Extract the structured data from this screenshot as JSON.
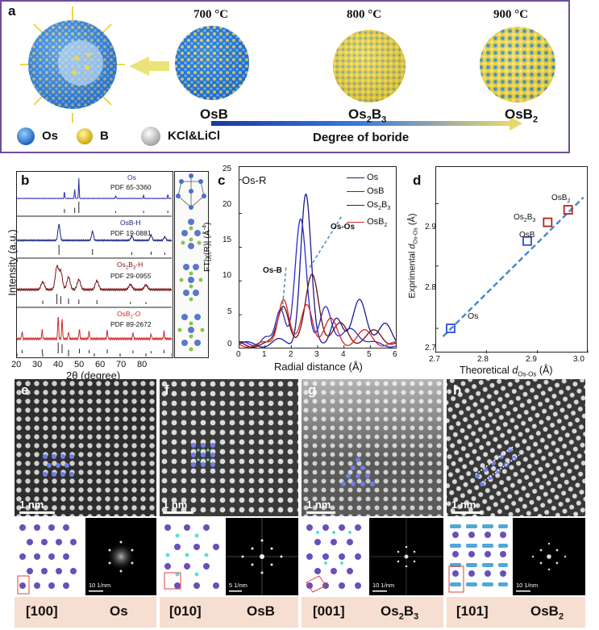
{
  "panel_a": {
    "letter": "a",
    "temps": [
      "700 °C",
      "800 °C",
      "900 °C"
    ],
    "phases": [
      "OsB",
      "Os",
      "2",
      "B",
      "3",
      "OsB",
      "2"
    ],
    "legend": [
      "Os",
      "B",
      "KCl&LiCl"
    ],
    "gradient_label": "Degree of boride"
  },
  "panel_b": {
    "letter": "b",
    "traces": [
      {
        "name": "Os",
        "pdf": "PDF 65-3360",
        "color": "#2c2cb0"
      },
      {
        "name": "OsB-H",
        "pdf": "PDF 19-0881",
        "color": "#1a237e"
      },
      {
        "name_parts": [
          "Os",
          "2",
          "B",
          "3",
          "-H"
        ],
        "pdf": "PDF 29-0955",
        "color": "#7a1414"
      },
      {
        "name_parts": [
          "OsB",
          "2",
          "-O"
        ],
        "pdf": "PDF 89-2672",
        "color": "#d22b2b"
      }
    ],
    "ylabel": "Intensity (a.u.)",
    "xlabel": "2θ (degree)",
    "xticks": [
      "20",
      "30",
      "40",
      "50",
      "60",
      "70",
      "80"
    ]
  },
  "panel_c": {
    "letter": "c",
    "title": "Os-R",
    "ylabel_parts": [
      "FT|χ(R)| (Å",
      "-4",
      ")"
    ],
    "xlabel": "Radial distance (Å)",
    "xticks": [
      "0",
      "1",
      "2",
      "3",
      "4",
      "5",
      "6"
    ],
    "yticks": [
      "0",
      "5",
      "10",
      "15",
      "20",
      "25"
    ],
    "annotations": [
      "Os-B",
      "Os-Os"
    ],
    "legend": [
      {
        "label": "Os",
        "color": "#1c1c8c"
      },
      {
        "label": "OsB",
        "color": "#2a2ad0"
      },
      {
        "label_parts": [
          "Os",
          "2",
          "B",
          "3"
        ],
        "color": "#6e0e0e"
      },
      {
        "label_parts": [
          "OsB",
          "2"
        ],
        "color": "#d42a2a"
      }
    ]
  },
  "panel_d": {
    "letter": "d",
    "xlabel_parts": [
      "Theoretical ",
      "d",
      "Os-Os",
      " (Å)"
    ],
    "ylabel_parts": [
      "Exprimental ",
      "d",
      "Os-Os",
      " (Å)"
    ],
    "xticks": [
      "2.7",
      "2.8",
      "2.9",
      "3.0"
    ],
    "yticks": [
      "2.7",
      "2.8",
      "2.9"
    ],
    "points": [
      {
        "label": "Os",
        "x": 2.73,
        "y": 2.7,
        "color": "#2a4fd0"
      },
      {
        "label": "OsB",
        "x": 2.88,
        "y": 2.84,
        "color": "#2a4fd0"
      },
      {
        "label_parts": [
          "Os",
          "2",
          "B",
          "3"
        ],
        "x": 2.92,
        "y": 2.87,
        "color": "#b22222"
      },
      {
        "label_parts": [
          "OsB",
          "2"
        ],
        "x": 2.96,
        "y": 2.89,
        "color": "#b22222"
      }
    ]
  },
  "microscopy": [
    {
      "letter": "e",
      "scale": "1 nm",
      "fft_scale": "10 1/nm",
      "zone": "[100]",
      "material": "Os"
    },
    {
      "letter": "f",
      "scale": "1 nm",
      "fft_scale": "5 1/nm",
      "zone": "[010]",
      "material": "OsB"
    },
    {
      "letter": "g",
      "scale": "1 nm",
      "fft_scale": "10 1/nm",
      "zone": "[001]",
      "material_parts": [
        "Os",
        "2",
        "B",
        "3"
      ]
    },
    {
      "letter": "h",
      "scale": "1 nm",
      "fft_scale": "10 1/nm",
      "zone": "[101]",
      "material_parts": [
        "OsB",
        "2"
      ]
    }
  ]
}
